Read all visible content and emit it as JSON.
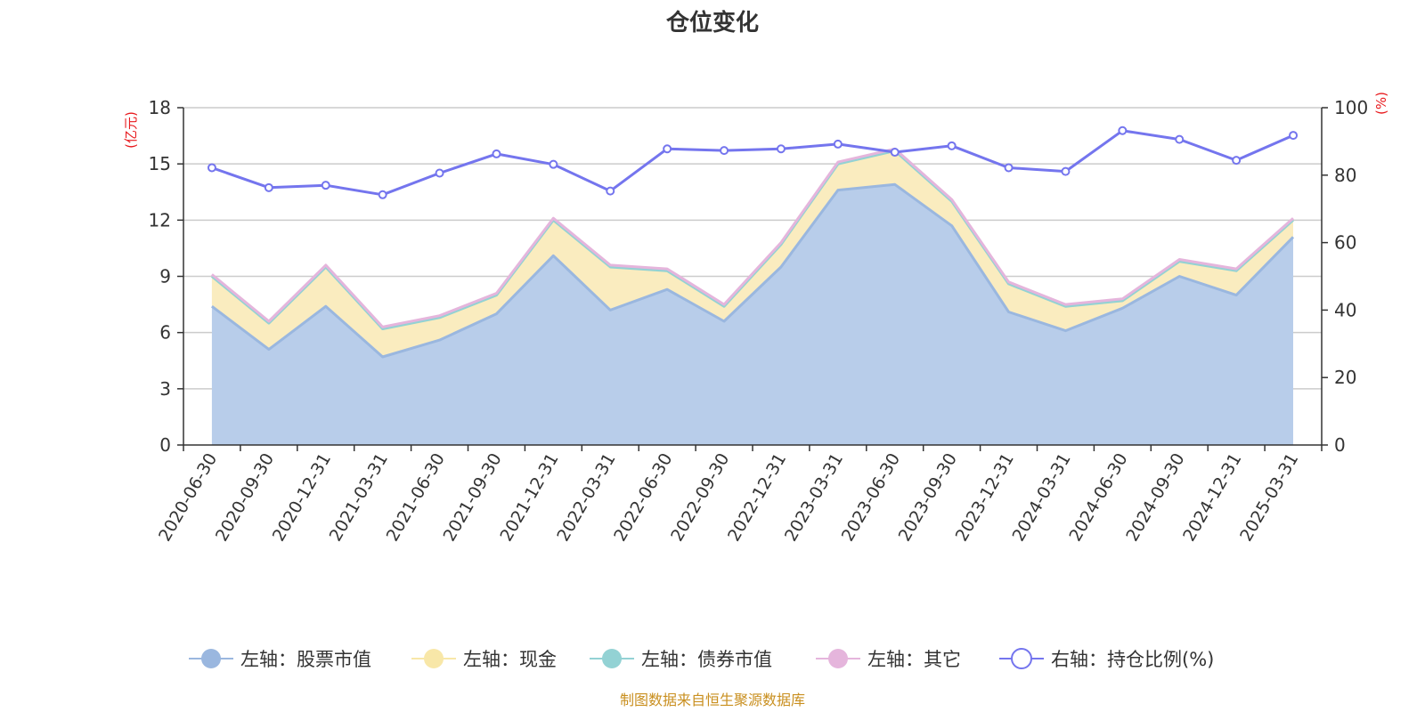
{
  "chart_data": {
    "type": "area",
    "title": "仓位变化",
    "left_axis_unit": "(亿元)",
    "right_axis_unit": "(%)",
    "left_ylim": [
      0,
      18
    ],
    "left_ticks": [
      "0",
      "3",
      "6",
      "9",
      "12",
      "15",
      "18"
    ],
    "right_ylim": [
      0,
      100
    ],
    "right_ticks": [
      "0",
      "20",
      "40",
      "60",
      "80",
      "100"
    ],
    "categories": [
      "2020-06-30",
      "2020-09-30",
      "2020-12-31",
      "2021-03-31",
      "2021-06-30",
      "2021-09-30",
      "2021-12-31",
      "2022-03-31",
      "2022-06-30",
      "2022-09-30",
      "2022-12-31",
      "2023-03-31",
      "2023-06-30",
      "2023-09-30",
      "2023-12-31",
      "2024-03-31",
      "2024-06-30",
      "2024-09-30",
      "2024-12-31",
      "2025-03-31"
    ],
    "series": [
      {
        "name": "左轴：股票市值",
        "axis": "left",
        "stacked": true,
        "color": "#9ab7df",
        "fill": "#b8cdea",
        "values": [
          7.4,
          5.1,
          7.4,
          4.7,
          5.6,
          7.0,
          10.1,
          7.2,
          8.3,
          6.6,
          9.5,
          13.6,
          13.9,
          11.7,
          7.1,
          6.1,
          7.3,
          9.0,
          8.0,
          11.1
        ]
      },
      {
        "name": "左轴：现金",
        "axis": "left",
        "stacked": true,
        "color": "#f8e7a8",
        "fill": "#faecbf",
        "values": [
          1.6,
          1.4,
          2.1,
          1.5,
          1.2,
          1.0,
          1.9,
          2.3,
          1.0,
          0.8,
          1.2,
          1.4,
          1.8,
          1.3,
          1.5,
          1.3,
          0.4,
          0.8,
          1.3,
          0.9
        ]
      },
      {
        "name": "左轴：债券市值",
        "axis": "left",
        "stacked": true,
        "color": "#93d2d4",
        "fill": "#b5e1e2",
        "values": [
          0,
          0,
          0,
          0,
          0,
          0,
          0,
          0,
          0,
          0,
          0,
          0,
          0,
          0,
          0,
          0,
          0,
          0,
          0,
          0
        ]
      },
      {
        "name": "左轴：其它",
        "axis": "left",
        "stacked": true,
        "color": "#e5b5dc",
        "fill": "#ecc7e6",
        "values": [
          0.1,
          0.1,
          0.1,
          0.1,
          0.1,
          0.1,
          0.1,
          0.1,
          0.1,
          0.1,
          0.1,
          0.1,
          0.1,
          0.1,
          0.1,
          0.1,
          0.1,
          0.1,
          0.1,
          0.1
        ]
      },
      {
        "name": "右轴：持仓比例(%)",
        "axis": "right",
        "stacked": false,
        "color": "#7475ee",
        "values": [
          82.2,
          76.3,
          77.0,
          74.2,
          80.6,
          86.3,
          83.2,
          75.3,
          87.8,
          87.3,
          87.8,
          89.2,
          86.8,
          88.7,
          82.2,
          81.1,
          93.2,
          90.6,
          84.4,
          91.8
        ]
      }
    ]
  },
  "footer": {
    "source": "制图数据来自恒生聚源数据库"
  }
}
